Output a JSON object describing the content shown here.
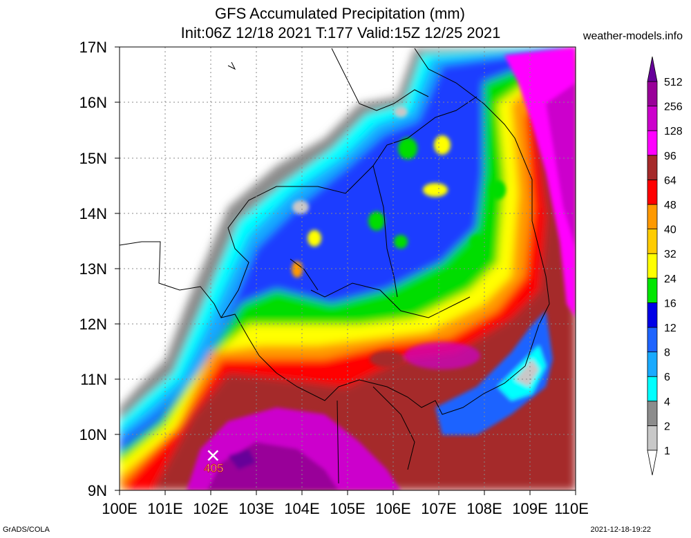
{
  "header": {
    "title_line1": "GFS Accumulated Precipitation (mm)",
    "title_line2": "Init:06Z 12/18 2021 T:177 Valid:15Z 12/25 2021",
    "site": "weather-models.info"
  },
  "axes": {
    "lat_labels": [
      "9N",
      "10N",
      "11N",
      "12N",
      "13N",
      "14N",
      "15N",
      "16N",
      "17N"
    ],
    "lon_labels": [
      "100E",
      "101E",
      "102E",
      "103E",
      "104E",
      "105E",
      "106E",
      "107E",
      "108E",
      "109E",
      "110E"
    ]
  },
  "max_marker": {
    "value": "405",
    "lon": 102.05,
    "lat": 9.38
  },
  "legend": {
    "unit": "mm",
    "levels": [
      "1",
      "2",
      "4",
      "6",
      "8",
      "12",
      "16",
      "24",
      "32",
      "40",
      "48",
      "64",
      "96",
      "128",
      "256",
      "512"
    ],
    "colors": [
      "#ffffff",
      "#c8c8c8",
      "#8c8c8c",
      "#00ffff",
      "#19aaff",
      "#1e64ff",
      "#0000e6",
      "#00e600",
      "#ffff00",
      "#ffcc00",
      "#ff9900",
      "#ff0000",
      "#a52a2a",
      "#ff00ff",
      "#cc00cc",
      "#990099",
      "#660099"
    ]
  },
  "footer": {
    "left": "GrADS/COLA",
    "right": "2021-12-18-19:22"
  }
}
